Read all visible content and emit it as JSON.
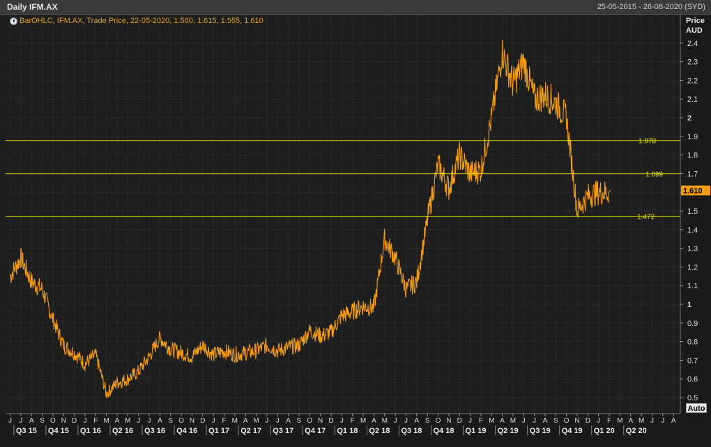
{
  "header": {
    "title": "Daily IFM.AX",
    "date_range": "25-05-2015 - 26-08-2020 (SYD)"
  },
  "legend": {
    "text": "BarOHLC, IFM.AX, Trade Price, 22-05-2020, 1.560, 1.615, 1.555, 1.610",
    "icon": "settings-circle-icon"
  },
  "axis_button": {
    "label": "Auto"
  },
  "colors": {
    "background": "#1e1e1e",
    "grid": "#3c3c3c",
    "series": "#f39c12",
    "hline": "#e8e000",
    "last_price_bg": "#f39c12"
  },
  "chart_data": {
    "type": "line",
    "ylabel": "Price",
    "yunit": "AUD",
    "ylim": [
      0.46,
      2.54
    ],
    "y_ticks": [
      "0.5",
      "0.6",
      "0.7",
      "0.8",
      "0.9",
      "1",
      "1.1",
      "1.2",
      "1.3",
      "1.4",
      "1.5",
      "1.6",
      "1.7",
      "1.8",
      "1.9",
      "2",
      "2.1",
      "2.2",
      "2.3",
      "2.4"
    ],
    "bold_ticks": [
      "1",
      "2"
    ],
    "month_ticks": [
      "J",
      "J",
      "A",
      "S",
      "O",
      "N",
      "D",
      "J",
      "F",
      "M",
      "A",
      "M",
      "J",
      "J",
      "A",
      "S",
      "O",
      "N",
      "D",
      "J",
      "F",
      "M",
      "A",
      "M",
      "J",
      "J",
      "A",
      "S",
      "O",
      "N",
      "D",
      "J",
      "F",
      "M",
      "A",
      "M",
      "J",
      "J",
      "A",
      "S",
      "O",
      "N",
      "D",
      "J",
      "F",
      "M",
      "A",
      "M",
      "J",
      "J",
      "A",
      "S",
      "O",
      "N",
      "D",
      "J",
      "F",
      "M",
      "A",
      "M",
      "J",
      "J",
      "A"
    ],
    "quarter_ticks": [
      "Q3 15",
      "Q4 15",
      "Q1 16",
      "Q2 16",
      "Q3 16",
      "Q4 16",
      "Q1 17",
      "Q2 17",
      "Q3 17",
      "Q4 17",
      "Q1 18",
      "Q2 18",
      "Q3 18",
      "Q4 18",
      "Q1 19",
      "Q2 19",
      "Q3 19",
      "Q4 19",
      "Q1 20",
      "Q2 20"
    ],
    "horizontal_lines": [
      {
        "value": 1.878,
        "label": "1.878"
      },
      {
        "value": 1.699,
        "label": "1.699"
      },
      {
        "value": 1.472,
        "label": "1.472"
      }
    ],
    "last_price": {
      "value": 1.61,
      "label": "1.610"
    },
    "series": [
      {
        "x": [
          0,
          1,
          2,
          3,
          4,
          5,
          6,
          7,
          8,
          9,
          10,
          11,
          12,
          13,
          14,
          15,
          16,
          17,
          18,
          19,
          20,
          21,
          22,
          23,
          24,
          25,
          26,
          27,
          28,
          29,
          30,
          31,
          32,
          33,
          34,
          35,
          36,
          37,
          38,
          39,
          40,
          41,
          42,
          43,
          44,
          45,
          46,
          47,
          48,
          49,
          50,
          51,
          52,
          53,
          54,
          55,
          56,
          57,
          58,
          59,
          60,
          61,
          62
        ],
        "y": [
          1.15,
          1.25,
          1.12,
          1.08,
          0.92,
          0.78,
          0.74,
          0.68,
          0.73,
          0.52,
          0.58,
          0.6,
          0.64,
          0.72,
          0.82,
          0.76,
          0.74,
          0.72,
          0.78,
          0.73,
          0.75,
          0.73,
          0.74,
          0.75,
          0.78,
          0.75,
          0.77,
          0.78,
          0.86,
          0.83,
          0.85,
          0.94,
          0.96,
          0.99,
          0.98,
          1.35,
          1.25,
          1.08,
          1.12,
          1.45,
          1.75,
          1.62,
          1.8,
          1.7,
          1.72,
          2.0,
          2.35,
          2.18,
          2.3,
          2.1,
          2.12,
          2.08,
          2.0,
          1.5,
          1.58,
          1.6,
          1.6,
          null,
          null,
          null,
          null,
          null,
          null
        ]
      }
    ]
  }
}
